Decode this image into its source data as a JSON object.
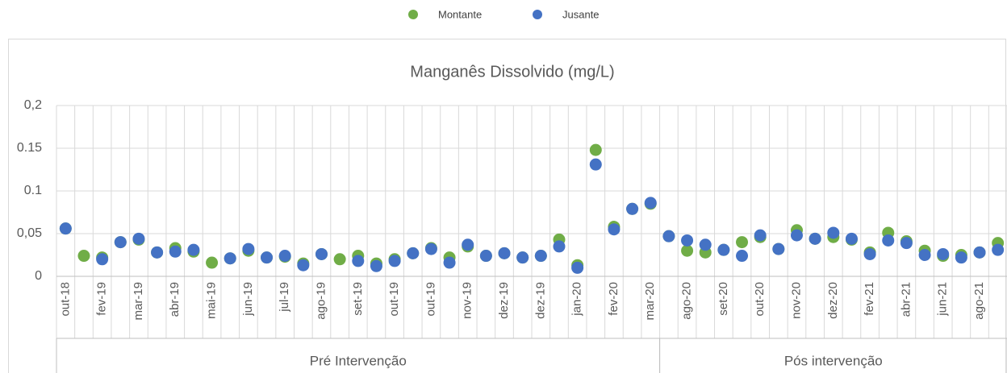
{
  "chart_data": {
    "type": "scatter",
    "title": "Manganês Dissolvido (mg/L)",
    "categories": [
      "out-18",
      null,
      "fev-19",
      null,
      "mar-19",
      null,
      "abr-19",
      null,
      "mai-19",
      null,
      "jun-19",
      null,
      "jul-19",
      null,
      "ago-19",
      null,
      "set-19",
      null,
      "out-19",
      null,
      "out-19",
      null,
      "nov-19",
      null,
      "dez-19",
      null,
      "dez-19",
      null,
      "jan-20",
      null,
      "fev-20",
      null,
      "mar-20",
      null,
      "ago-20",
      null,
      "set-20",
      null,
      "out-20",
      null,
      "nov-20",
      null,
      "dez-20",
      null,
      "fev-21",
      null,
      "abr-21",
      null,
      "jun-21",
      null,
      "ago-21",
      null
    ],
    "groups": [
      {
        "name": "Pré Intervenção",
        "start": 0,
        "end": 32
      },
      {
        "name": "Pós intervenção",
        "start": 33,
        "end": 51
      }
    ],
    "series": [
      {
        "name": "Montante",
        "color": "#70ad47",
        "values": [
          0.056,
          0.024,
          0.022,
          0.04,
          0.043,
          0.028,
          0.033,
          0.029,
          0.016,
          0.021,
          0.03,
          0.022,
          0.023,
          0.015,
          0.026,
          0.02,
          0.024,
          0.015,
          0.02,
          0.027,
          0.033,
          0.022,
          0.035,
          0.024,
          0.027,
          0.022,
          0.024,
          0.043,
          0.013,
          0.148,
          0.058,
          0.079,
          0.085,
          0.047,
          0.03,
          0.028,
          0.031,
          0.04,
          0.046,
          0.032,
          0.054,
          0.044,
          0.046,
          0.043,
          0.028,
          0.051,
          0.041,
          0.03,
          0.024,
          0.025,
          0.028,
          0.039
        ]
      },
      {
        "name": "Jusante",
        "color": "#4472c4",
        "values": [
          0.056,
          null,
          0.02,
          0.04,
          0.044,
          0.028,
          0.029,
          0.031,
          null,
          0.021,
          0.032,
          0.022,
          0.024,
          0.013,
          0.026,
          null,
          0.018,
          0.012,
          0.018,
          0.027,
          0.032,
          0.016,
          0.037,
          0.024,
          0.027,
          0.022,
          0.024,
          0.035,
          0.01,
          0.131,
          0.055,
          0.079,
          0.086,
          0.047,
          0.042,
          0.037,
          0.031,
          0.024,
          0.048,
          0.032,
          0.048,
          0.044,
          0.051,
          0.044,
          0.026,
          0.042,
          0.039,
          0.025,
          0.026,
          0.022,
          0.028,
          0.031
        ]
      }
    ],
    "ylim": [
      0,
      0.2
    ],
    "yticks": [
      0,
      {
        "value": 0.05,
        "label": "0,05"
      },
      0.1,
      0.15,
      {
        "value": 0.2,
        "label": "0,2"
      }
    ],
    "grid": true,
    "legend": "top"
  }
}
